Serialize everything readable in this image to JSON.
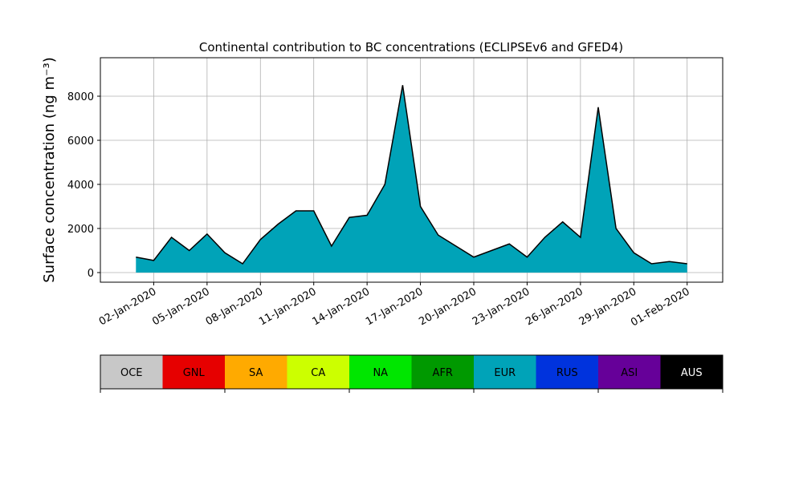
{
  "chart_data": {
    "type": "stacked_area",
    "title": "Continental contribution to BC concentrations (ECLIPSEv6 and GFED4)",
    "y_label": "Surface concentration (ng m⁻³)",
    "x": [
      "2020-01-01",
      "2020-01-02",
      "2020-01-03",
      "2020-01-04",
      "2020-01-05",
      "2020-01-06",
      "2020-01-07",
      "2020-01-08",
      "2020-01-09",
      "2020-01-10",
      "2020-01-11",
      "2020-01-12",
      "2020-01-13",
      "2020-01-14",
      "2020-01-15",
      "2020-01-16",
      "2020-01-17",
      "2020-01-18",
      "2020-01-19",
      "2020-01-20",
      "2020-01-21",
      "2020-01-22",
      "2020-01-23",
      "2020-01-24",
      "2020-01-25",
      "2020-01-26",
      "2020-01-27",
      "2020-01-28",
      "2020-01-29",
      "2020-01-30",
      "2020-01-31",
      "2020-02-01"
    ],
    "series": [
      {
        "name": "OCE",
        "color": "#c8c8c8",
        "values": [
          0,
          0,
          0,
          0,
          0,
          0,
          0,
          0,
          0,
          0,
          0,
          0,
          0,
          0,
          0,
          0,
          0,
          0,
          0,
          0,
          0,
          0,
          0,
          0,
          0,
          0,
          0,
          0,
          0,
          0,
          0,
          0
        ]
      },
      {
        "name": "GNL",
        "color": "#e60000",
        "values": [
          0,
          0,
          0,
          0,
          0,
          0,
          0,
          0,
          0,
          0,
          0,
          0,
          0,
          0,
          0,
          0,
          0,
          0,
          0,
          0,
          0,
          0,
          0,
          0,
          0,
          0,
          0,
          0,
          0,
          0,
          0,
          0
        ]
      },
      {
        "name": "SA",
        "color": "#ffaa00",
        "values": [
          0,
          0,
          0,
          0,
          0,
          0,
          0,
          0,
          0,
          0,
          0,
          0,
          0,
          0,
          0,
          0,
          0,
          0,
          0,
          0,
          0,
          0,
          0,
          0,
          0,
          0,
          0,
          0,
          0,
          0,
          0,
          0
        ]
      },
      {
        "name": "CA",
        "color": "#ccff00",
        "values": [
          0,
          0,
          0,
          0,
          0,
          0,
          0,
          0,
          0,
          0,
          0,
          0,
          0,
          0,
          0,
          0,
          0,
          0,
          0,
          0,
          0,
          0,
          0,
          0,
          0,
          0,
          0,
          0,
          0,
          0,
          0,
          0
        ]
      },
      {
        "name": "NA",
        "color": "#00e600",
        "values": [
          0,
          0,
          0,
          0,
          0,
          0,
          0,
          0,
          0,
          0,
          0,
          0,
          0,
          0,
          0,
          0,
          0,
          0,
          0,
          0,
          0,
          0,
          0,
          0,
          0,
          0,
          0,
          0,
          0,
          0,
          0,
          0
        ]
      },
      {
        "name": "AFR",
        "color": "#009900",
        "values": [
          0,
          0,
          0,
          0,
          0,
          0,
          0,
          0,
          0,
          0,
          0,
          0,
          0,
          0,
          0,
          0,
          0,
          0,
          0,
          0,
          0,
          0,
          0,
          0,
          0,
          0,
          0,
          0,
          0,
          0,
          0,
          0
        ]
      },
      {
        "name": "EUR",
        "color": "#00a3b8",
        "values": [
          700,
          550,
          1600,
          1000,
          1750,
          900,
          400,
          1500,
          2200,
          2800,
          2800,
          1200,
          2500,
          2600,
          4000,
          8500,
          3000,
          1700,
          1200,
          700,
          1000,
          1300,
          700,
          1600,
          2300,
          1600,
          7500,
          2000,
          900,
          400,
          500,
          400
        ]
      },
      {
        "name": "RUS",
        "color": "#0033dd",
        "values": [
          0,
          0,
          0,
          0,
          0,
          0,
          0,
          0,
          0,
          0,
          0,
          0,
          0,
          0,
          0,
          0,
          0,
          0,
          0,
          0,
          0,
          0,
          0,
          0,
          0,
          0,
          0,
          0,
          0,
          0,
          0,
          0
        ]
      },
      {
        "name": "ASI",
        "color": "#660099",
        "values": [
          0,
          0,
          0,
          0,
          0,
          0,
          0,
          0,
          0,
          0,
          0,
          0,
          0,
          0,
          0,
          0,
          0,
          0,
          0,
          0,
          0,
          0,
          0,
          0,
          0,
          0,
          0,
          0,
          0,
          0,
          0,
          0
        ]
      },
      {
        "name": "AUS",
        "color": "#000000",
        "values": [
          0,
          0,
          0,
          0,
          0,
          0,
          0,
          0,
          0,
          0,
          0,
          0,
          0,
          0,
          0,
          0,
          0,
          0,
          0,
          0,
          0,
          0,
          0,
          0,
          0,
          0,
          0,
          0,
          0,
          0,
          0,
          0
        ]
      }
    ],
    "xlim": [
      "2019-12-30",
      "2020-02-03"
    ],
    "xticks": [
      {
        "value": "2020-01-02",
        "label": "02-Jan-2020"
      },
      {
        "value": "2020-01-05",
        "label": "05-Jan-2020"
      },
      {
        "value": "2020-01-08",
        "label": "08-Jan-2020"
      },
      {
        "value": "2020-01-11",
        "label": "11-Jan-2020"
      },
      {
        "value": "2020-01-14",
        "label": "14-Jan-2020"
      },
      {
        "value": "2020-01-17",
        "label": "17-Jan-2020"
      },
      {
        "value": "2020-01-20",
        "label": "20-Jan-2020"
      },
      {
        "value": "2020-01-23",
        "label": "23-Jan-2020"
      },
      {
        "value": "2020-01-26",
        "label": "26-Jan-2020"
      },
      {
        "value": "2020-01-29",
        "label": "29-Jan-2020"
      },
      {
        "value": "2020-02-01",
        "label": "01-Feb-2020"
      }
    ],
    "ylim": [
      -436,
      9745
    ],
    "yticks": [
      0,
      2000,
      4000,
      6000,
      8000
    ],
    "grid": true
  }
}
